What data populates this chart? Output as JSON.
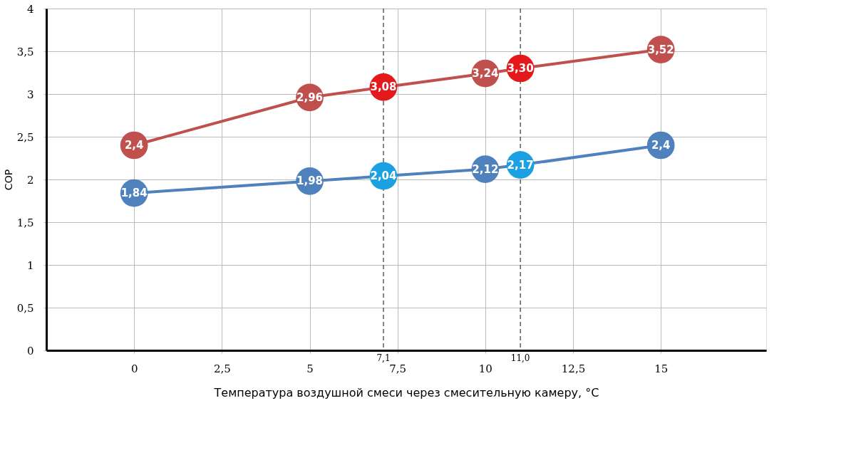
{
  "chart_data": {
    "type": "line",
    "xlabel": "Температура воздушной смеси через смесительную камеру, °C",
    "ylabel": "COP",
    "x": [
      0,
      5,
      7.1,
      10,
      11.0,
      15
    ],
    "series": [
      {
        "color": "#c0504d",
        "colors": [
          "#c0504d",
          "#c0504d",
          "#e3191c",
          "#c0504d",
          "#e3191c",
          "#c0504d"
        ],
        "values": [
          2.4,
          2.96,
          3.08,
          3.24,
          3.3,
          3.52
        ],
        "value_labels": [
          "2,4",
          "2,96",
          "3,08",
          "3,24",
          "3,30",
          "3,52"
        ]
      },
      {
        "color": "#4f81bd",
        "colors": [
          "#4f81bd",
          "#4f81bd",
          "#1ba1e2",
          "#4f81bd",
          "#1ba1e2",
          "#4f81bd"
        ],
        "values": [
          1.84,
          1.98,
          2.04,
          2.12,
          2.17,
          2.4
        ],
        "value_labels": [
          "1,84",
          "1,98",
          "2,04",
          "2,12",
          "2,17",
          "2,4"
        ]
      }
    ],
    "xlim": [
      -2.5,
      18
    ],
    "xticks": [
      0,
      {
        "value": 2.5,
        "label": "2,5"
      },
      5,
      {
        "value": 7.5,
        "label": "7,5"
      },
      10,
      {
        "value": 12.5,
        "label": "12,5"
      },
      15
    ],
    "ylim": [
      0,
      4
    ],
    "yticks": [
      0,
      {
        "value": 0.5,
        "label": "0,5"
      },
      1,
      {
        "value": 1.5,
        "label": "1,5"
      },
      2,
      {
        "value": 2.5,
        "label": "2,5"
      },
      3,
      {
        "value": 3.5,
        "label": "3,5"
      },
      4
    ],
    "ref_lines": [
      {
        "axis": "x",
        "value": 7.1,
        "label": "7,1",
        "color": "#333333",
        "line_style": "dashed"
      },
      {
        "axis": "x",
        "value": 11.0,
        "label": "11,0",
        "color": "#333333",
        "line_style": "dashed"
      }
    ],
    "grid": true,
    "marker": "circle",
    "line_style": "solid"
  }
}
